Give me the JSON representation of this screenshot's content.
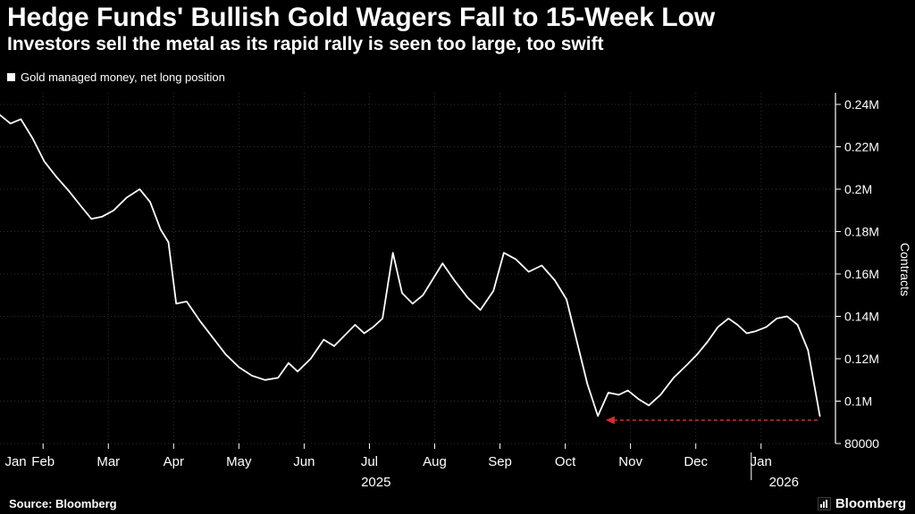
{
  "header": {
    "title": "Hedge Funds' Bullish Gold Wagers Fall to 15-Week Low",
    "subtitle": "Investors sell the metal as its rapid rally is seen too large, too swift"
  },
  "legend": {
    "label": "Gold managed money, net long position"
  },
  "footer": {
    "source": "Source: Bloomberg",
    "brand": "Bloomberg"
  },
  "chart_data": {
    "type": "line",
    "title": "Hedge Funds' Bullish Gold Wagers Fall to 15-Week Low",
    "ylabel": "Contracts",
    "ylim": [
      80000,
      245000
    ],
    "grid": {
      "color": "#2f2f2f",
      "on": true,
      "v_months": [
        1,
        2,
        3,
        4,
        5,
        6,
        7,
        8,
        9,
        10,
        11,
        12
      ]
    },
    "y_ticks": [
      [
        240000,
        "0.24M"
      ],
      [
        220000,
        "0.22M"
      ],
      [
        200000,
        "0.2M"
      ],
      [
        180000,
        "0.18M"
      ],
      [
        160000,
        "0.16M"
      ],
      [
        140000,
        "0.14M"
      ],
      [
        120000,
        "0.12M"
      ],
      [
        100000,
        "0.1M"
      ],
      [
        80000,
        "80000"
      ]
    ],
    "x_ticks": [
      {
        "m": 0.58,
        "label": "Jan"
      },
      {
        "m": 1,
        "label": "Feb"
      },
      {
        "m": 2,
        "label": "Mar"
      },
      {
        "m": 3,
        "label": "Apr"
      },
      {
        "m": 4,
        "label": "May"
      },
      {
        "m": 5,
        "label": "Jun"
      },
      {
        "m": 6,
        "label": "Jul"
      },
      {
        "m": 7,
        "label": "Aug"
      },
      {
        "m": 8,
        "label": "Sep"
      },
      {
        "m": 9,
        "label": "Oct"
      },
      {
        "m": 10,
        "label": "Nov"
      },
      {
        "m": 11,
        "label": "Dec"
      },
      {
        "m": 12,
        "label": "Jan"
      }
    ],
    "year_ticks": [
      {
        "m": 6.1,
        "label": "2025"
      },
      {
        "m": 12.35,
        "label": "2026"
      }
    ],
    "year_separator_m": 11.85,
    "series": [
      {
        "name": "Gold managed money, net long position",
        "color": "#ffffff",
        "points": [
          [
            0.34,
            235000
          ],
          [
            0.5,
            231000
          ],
          [
            0.66,
            233000
          ],
          [
            0.84,
            224000
          ],
          [
            1.02,
            213000
          ],
          [
            1.2,
            206000
          ],
          [
            1.4,
            199000
          ],
          [
            1.58,
            192000
          ],
          [
            1.74,
            186000
          ],
          [
            1.9,
            187000
          ],
          [
            2.08,
            190000
          ],
          [
            2.28,
            196000
          ],
          [
            2.48,
            200000
          ],
          [
            2.64,
            194000
          ],
          [
            2.8,
            181000
          ],
          [
            2.92,
            175000
          ],
          [
            3.04,
            146000
          ],
          [
            3.2,
            147000
          ],
          [
            3.4,
            138000
          ],
          [
            3.6,
            130000
          ],
          [
            3.8,
            122000
          ],
          [
            4.0,
            116000
          ],
          [
            4.2,
            112000
          ],
          [
            4.4,
            110000
          ],
          [
            4.6,
            111000
          ],
          [
            4.76,
            118000
          ],
          [
            4.9,
            114000
          ],
          [
            5.1,
            120000
          ],
          [
            5.3,
            129000
          ],
          [
            5.46,
            126000
          ],
          [
            5.62,
            131000
          ],
          [
            5.78,
            136000
          ],
          [
            5.92,
            132000
          ],
          [
            6.06,
            135000
          ],
          [
            6.2,
            139000
          ],
          [
            6.36,
            170000
          ],
          [
            6.5,
            151000
          ],
          [
            6.66,
            146000
          ],
          [
            6.82,
            150000
          ],
          [
            6.96,
            157000
          ],
          [
            7.12,
            165000
          ],
          [
            7.3,
            157000
          ],
          [
            7.5,
            149000
          ],
          [
            7.7,
            143000
          ],
          [
            7.9,
            152000
          ],
          [
            8.06,
            170000
          ],
          [
            8.24,
            167000
          ],
          [
            8.44,
            161000
          ],
          [
            8.64,
            164000
          ],
          [
            8.84,
            157000
          ],
          [
            9.02,
            148000
          ],
          [
            9.18,
            128000
          ],
          [
            9.34,
            108000
          ],
          [
            9.5,
            93000
          ],
          [
            9.66,
            104000
          ],
          [
            9.82,
            103000
          ],
          [
            9.96,
            105000
          ],
          [
            10.12,
            101000
          ],
          [
            10.28,
            98000
          ],
          [
            10.46,
            103000
          ],
          [
            10.66,
            111000
          ],
          [
            10.86,
            117000
          ],
          [
            11.02,
            122000
          ],
          [
            11.18,
            128000
          ],
          [
            11.34,
            135000
          ],
          [
            11.5,
            139000
          ],
          [
            11.64,
            136000
          ],
          [
            11.78,
            132000
          ],
          [
            11.92,
            133000
          ],
          [
            12.08,
            135000
          ],
          [
            12.24,
            139000
          ],
          [
            12.4,
            140000
          ],
          [
            12.56,
            136000
          ],
          [
            12.72,
            124000
          ],
          [
            12.9,
            93000
          ]
        ]
      }
    ],
    "annotation": {
      "type": "arrow-left",
      "color": "#d92b2b",
      "value": 91000,
      "m_from": 9.62,
      "m_to": 12.88
    }
  }
}
